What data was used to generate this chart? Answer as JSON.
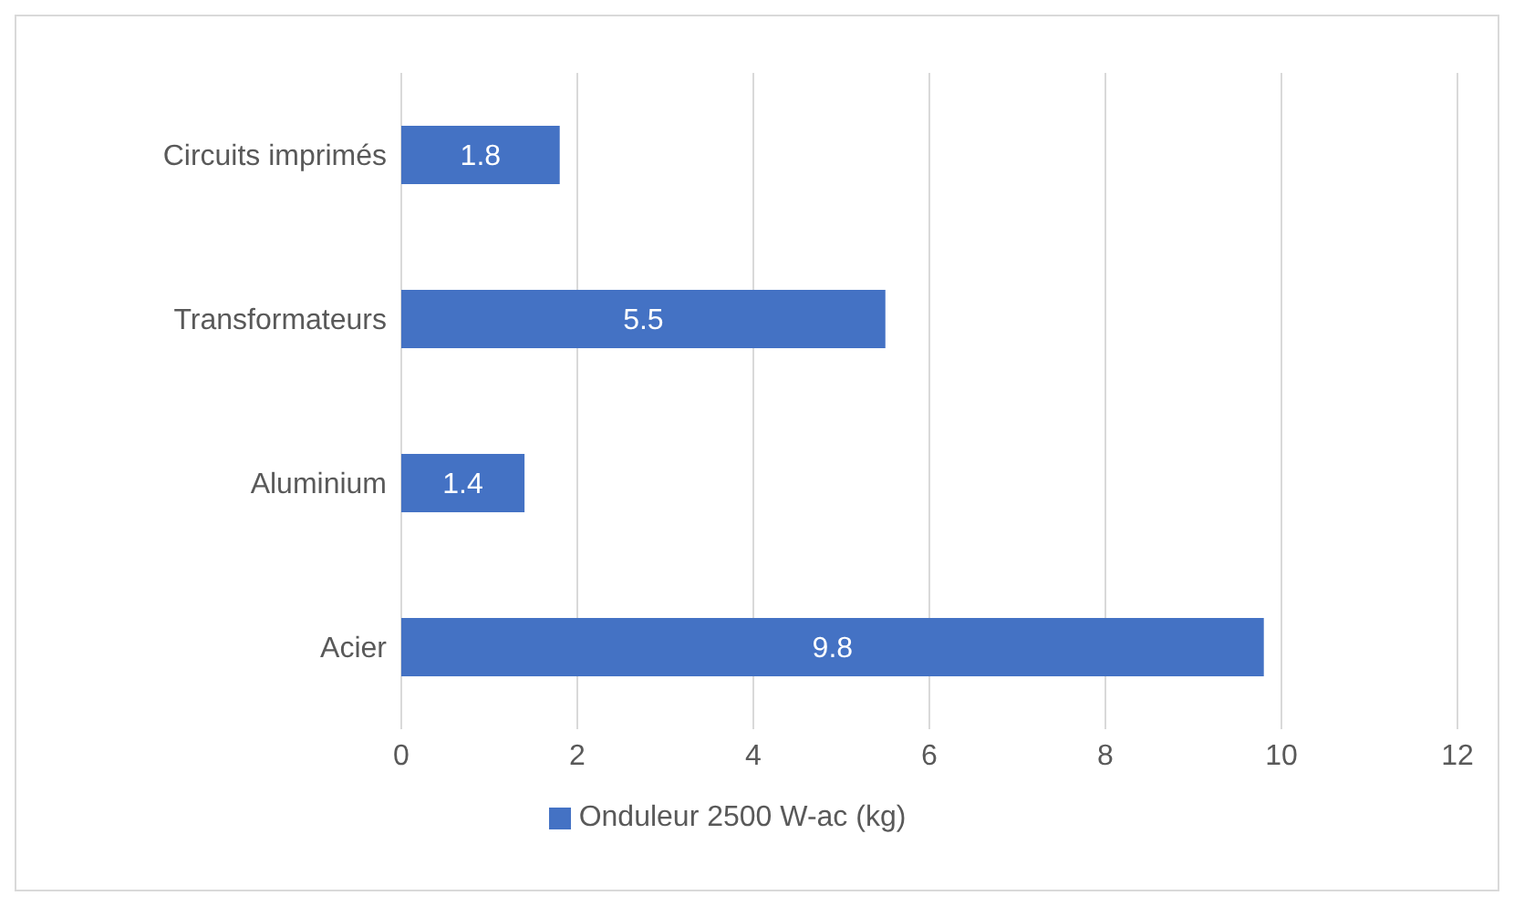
{
  "chart_data": {
    "type": "bar",
    "orientation": "horizontal",
    "categories": [
      "Circuits imprimés",
      "Transformateurs",
      "Aluminium",
      "Acier"
    ],
    "series": [
      {
        "name": "Onduleur 2500 W-ac (kg)",
        "color": "#4472c4",
        "values": [
          1.8,
          5.5,
          1.4,
          9.8
        ]
      }
    ],
    "xlim": [
      0,
      12
    ],
    "xticks": [
      0,
      2,
      4,
      6,
      8,
      10,
      12
    ],
    "grid": "x",
    "legend": "bottom",
    "data_labels": true
  }
}
